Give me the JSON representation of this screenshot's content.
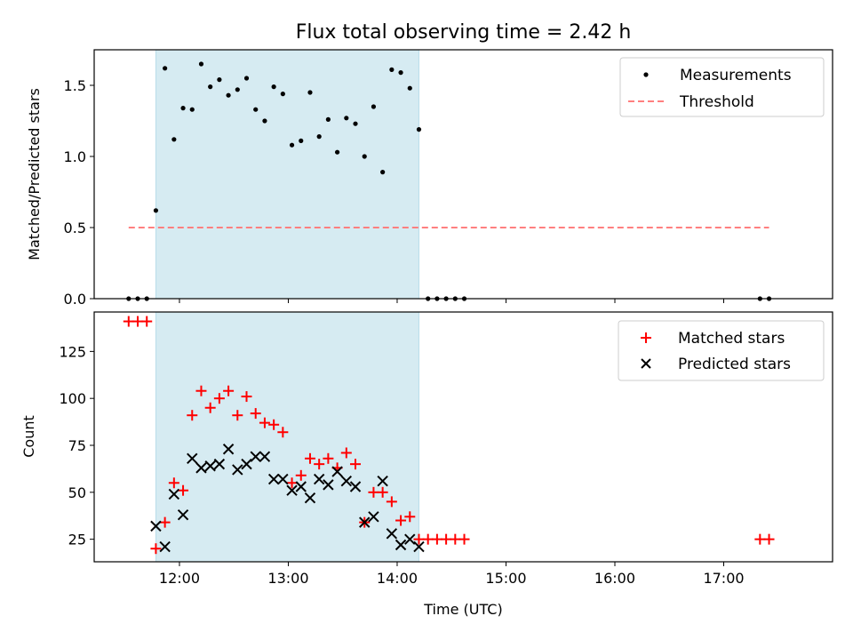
{
  "chart_data": [
    {
      "type": "scatter",
      "title": "Flux total observing time = 2.42 h",
      "xlabel": "",
      "ylabel": "Matched/Predicted stars",
      "xlim": [
        "11:13",
        "18:00"
      ],
      "ylim": [
        0,
        1.75
      ],
      "yticks": [
        0.0,
        0.5,
        1.0,
        1.5
      ],
      "ytick_labels": [
        "0.0",
        "0.5",
        "1.0",
        "1.5"
      ],
      "shaded_interval": [
        "11:47",
        "14:12"
      ],
      "shaded_color": "#add8e6",
      "legend_position": "top-right",
      "series": [
        {
          "name": "Measurements",
          "marker": "dot",
          "color": "#000000",
          "points": [
            [
              "11:32",
              0.0
            ],
            [
              "11:37",
              0.0
            ],
            [
              "11:42",
              0.0
            ],
            [
              "11:47",
              0.62
            ],
            [
              "11:52",
              1.62
            ],
            [
              "11:57",
              1.12
            ],
            [
              "12:02",
              1.34
            ],
            [
              "12:07",
              1.33
            ],
            [
              "12:12",
              1.65
            ],
            [
              "12:17",
              1.49
            ],
            [
              "12:22",
              1.54
            ],
            [
              "12:27",
              1.43
            ],
            [
              "12:32",
              1.47
            ],
            [
              "12:37",
              1.55
            ],
            [
              "12:42",
              1.33
            ],
            [
              "12:47",
              1.25
            ],
            [
              "12:52",
              1.49
            ],
            [
              "12:57",
              1.44
            ],
            [
              "13:02",
              1.08
            ],
            [
              "13:07",
              1.11
            ],
            [
              "13:12",
              1.45
            ],
            [
              "13:17",
              1.14
            ],
            [
              "13:22",
              1.26
            ],
            [
              "13:27",
              1.03
            ],
            [
              "13:32",
              1.27
            ],
            [
              "13:37",
              1.23
            ],
            [
              "13:42",
              1.0
            ],
            [
              "13:47",
              1.35
            ],
            [
              "13:52",
              0.89
            ],
            [
              "13:57",
              1.61
            ],
            [
              "14:02",
              1.59
            ],
            [
              "14:07",
              1.48
            ],
            [
              "14:12",
              1.19
            ],
            [
              "14:17",
              0.0
            ],
            [
              "14:22",
              0.0
            ],
            [
              "14:27",
              0.0
            ],
            [
              "14:32",
              0.0
            ],
            [
              "14:37",
              0.0
            ],
            [
              "17:20",
              0.0
            ],
            [
              "17:25",
              0.0
            ]
          ]
        },
        {
          "name": "Threshold",
          "style": "dashed-line",
          "color": "#ff7f7f",
          "points": [
            [
              "11:32",
              0.5
            ],
            [
              "17:25",
              0.5
            ]
          ]
        }
      ]
    },
    {
      "type": "scatter",
      "title": "",
      "xlabel": "Time (UTC)",
      "ylabel": "Count",
      "xlim": [
        "11:13",
        "18:00"
      ],
      "ylim": [
        13,
        146
      ],
      "yticks": [
        25,
        50,
        75,
        100,
        125
      ],
      "ytick_labels": [
        "25",
        "50",
        "75",
        "100",
        "125"
      ],
      "xticks": [
        "12:00",
        "13:00",
        "14:00",
        "15:00",
        "16:00",
        "17:00"
      ],
      "xtick_labels": [
        "12:00",
        "13:00",
        "14:00",
        "15:00",
        "16:00",
        "17:00"
      ],
      "shaded_interval": [
        "11:47",
        "14:12"
      ],
      "shaded_color": "#add8e6",
      "legend_position": "top-right",
      "series": [
        {
          "name": "Matched stars",
          "marker": "plus",
          "color": "#ff0000",
          "points": [
            [
              "11:32",
              141
            ],
            [
              "11:37",
              141
            ],
            [
              "11:42",
              141
            ],
            [
              "11:47",
              20
            ],
            [
              "11:52",
              34
            ],
            [
              "11:57",
              55
            ],
            [
              "12:02",
              51
            ],
            [
              "12:07",
              91
            ],
            [
              "12:12",
              104
            ],
            [
              "12:17",
              95
            ],
            [
              "12:22",
              100
            ],
            [
              "12:27",
              104
            ],
            [
              "12:32",
              91
            ],
            [
              "12:37",
              101
            ],
            [
              "12:42",
              92
            ],
            [
              "12:47",
              87
            ],
            [
              "12:52",
              86
            ],
            [
              "12:57",
              82
            ],
            [
              "13:02",
              55
            ],
            [
              "13:07",
              59
            ],
            [
              "13:12",
              68
            ],
            [
              "13:17",
              65
            ],
            [
              "13:22",
              68
            ],
            [
              "13:27",
              63
            ],
            [
              "13:32",
              71
            ],
            [
              "13:37",
              65
            ],
            [
              "13:42",
              34
            ],
            [
              "13:47",
              50
            ],
            [
              "13:52",
              50
            ],
            [
              "13:57",
              45
            ],
            [
              "14:02",
              35
            ],
            [
              "14:07",
              37
            ],
            [
              "14:12",
              25
            ],
            [
              "14:17",
              25
            ],
            [
              "14:22",
              25
            ],
            [
              "14:27",
              25
            ],
            [
              "14:32",
              25
            ],
            [
              "14:37",
              25
            ],
            [
              "17:20",
              25
            ],
            [
              "17:25",
              25
            ]
          ]
        },
        {
          "name": "Predicted stars",
          "marker": "x",
          "color": "#000000",
          "points": [
            [
              "11:47",
              32
            ],
            [
              "11:52",
              21
            ],
            [
              "11:57",
              49
            ],
            [
              "12:02",
              38
            ],
            [
              "12:07",
              68
            ],
            [
              "12:12",
              63
            ],
            [
              "12:17",
              64
            ],
            [
              "12:22",
              65
            ],
            [
              "12:27",
              73
            ],
            [
              "12:32",
              62
            ],
            [
              "12:37",
              65
            ],
            [
              "12:42",
              69
            ],
            [
              "12:47",
              69
            ],
            [
              "12:52",
              57
            ],
            [
              "12:57",
              57
            ],
            [
              "13:02",
              51
            ],
            [
              "13:07",
              53
            ],
            [
              "13:12",
              47
            ],
            [
              "13:17",
              57
            ],
            [
              "13:22",
              54
            ],
            [
              "13:27",
              61
            ],
            [
              "13:32",
              56
            ],
            [
              "13:37",
              53
            ],
            [
              "13:42",
              34
            ],
            [
              "13:47",
              37
            ],
            [
              "13:52",
              56
            ],
            [
              "13:57",
              28
            ],
            [
              "14:02",
              22
            ],
            [
              "14:07",
              25
            ],
            [
              "14:12",
              21
            ]
          ]
        }
      ]
    }
  ]
}
